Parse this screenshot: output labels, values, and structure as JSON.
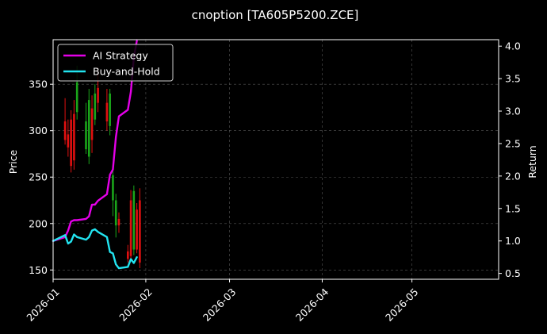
{
  "chart_data": {
    "type": "line",
    "title": "cnoption [TA605P5200.ZCE]",
    "ylabel_left": "Price",
    "ylabel_right": "Return",
    "xlim": [
      "2026-01-01",
      "2026-05-30"
    ],
    "ylim_left": [
      140,
      398
    ],
    "ylim_right": [
      0.41,
      4.1
    ],
    "x_ticks": [
      "2026-01",
      "2026-02",
      "2026-03",
      "2026-04",
      "2026-05"
    ],
    "y_ticks_left": [
      150,
      200,
      250,
      300,
      350
    ],
    "y_ticks_right": [
      "0.5",
      "1.0",
      "1.5",
      "2.0",
      "2.5",
      "3.0",
      "3.5",
      "4.0"
    ],
    "grid": true,
    "legend_position": "top-left",
    "colors": {
      "background": "#000000",
      "ai_strategy": "#e400e8",
      "buy_and_hold": "#22e4f0",
      "candle_up": "#1aa51a",
      "candle_down": "#e01010",
      "grid": "#555555"
    },
    "series": [
      {
        "name": "AI Strategy",
        "axis": "right",
        "color": "#e400e8",
        "x": [
          "2026-01-01",
          "2026-01-05",
          "2026-01-06",
          "2026-01-07",
          "2026-01-08",
          "2026-01-09",
          "2026-01-12",
          "2026-01-13",
          "2026-01-14",
          "2026-01-15",
          "2026-01-16",
          "2026-01-19",
          "2026-01-20",
          "2026-01-21",
          "2026-01-22",
          "2026-01-23",
          "2026-01-26",
          "2026-01-27",
          "2026-01-28",
          "2026-01-29"
        ],
        "values": [
          1.0,
          1.06,
          1.16,
          1.3,
          1.32,
          1.32,
          1.34,
          1.38,
          1.56,
          1.56,
          1.62,
          1.72,
          2.02,
          2.1,
          2.6,
          2.92,
          3.02,
          3.3,
          3.82,
          4.08
        ]
      },
      {
        "name": "Buy-and-Hold",
        "axis": "right",
        "color": "#22e4f0",
        "x": [
          "2026-01-01",
          "2026-01-05",
          "2026-01-06",
          "2026-01-07",
          "2026-01-08",
          "2026-01-09",
          "2026-01-12",
          "2026-01-13",
          "2026-01-14",
          "2026-01-15",
          "2026-01-16",
          "2026-01-19",
          "2026-01-20",
          "2026-01-21",
          "2026-01-22",
          "2026-01-23",
          "2026-01-26",
          "2026-01-27",
          "2026-01-28",
          "2026-01-29"
        ],
        "values": [
          1.0,
          1.09,
          0.96,
          0.99,
          1.1,
          1.06,
          1.02,
          1.06,
          1.16,
          1.18,
          1.14,
          1.06,
          0.83,
          0.81,
          0.64,
          0.58,
          0.6,
          0.72,
          0.66,
          0.75
        ]
      }
    ],
    "candles": [
      {
        "date": "2026-01-05",
        "open": 310,
        "high": 335,
        "low": 285,
        "close": 290
      },
      {
        "date": "2026-01-06",
        "open": 296,
        "high": 312,
        "low": 272,
        "close": 282
      },
      {
        "date": "2026-01-07",
        "open": 312,
        "high": 322,
        "low": 255,
        "close": 262
      },
      {
        "date": "2026-01-08",
        "open": 318,
        "high": 333,
        "low": 258,
        "close": 268
      },
      {
        "date": "2026-01-09",
        "open": 320,
        "high": 370,
        "low": 312,
        "close": 352
      },
      {
        "date": "2026-01-12",
        "open": 280,
        "high": 330,
        "low": 275,
        "close": 310
      },
      {
        "date": "2026-01-13",
        "open": 272,
        "high": 345,
        "low": 264,
        "close": 333
      },
      {
        "date": "2026-01-14",
        "open": 324,
        "high": 338,
        "low": 276,
        "close": 290
      },
      {
        "date": "2026-01-15",
        "open": 312,
        "high": 350,
        "low": 306,
        "close": 340
      },
      {
        "date": "2026-01-16",
        "open": 346,
        "high": 368,
        "low": 320,
        "close": 330
      },
      {
        "date": "2026-01-19",
        "open": 330,
        "high": 345,
        "low": 300,
        "close": 310
      },
      {
        "date": "2026-01-20",
        "open": 305,
        "high": 345,
        "low": 295,
        "close": 340
      },
      {
        "date": "2026-01-21",
        "open": 225,
        "high": 262,
        "low": 208,
        "close": 252
      },
      {
        "date": "2026-01-22",
        "open": 198,
        "high": 232,
        "low": 185,
        "close": 225
      },
      {
        "date": "2026-01-23",
        "open": 205,
        "high": 212,
        "low": 190,
        "close": 198
      },
      {
        "date": "2026-01-26",
        "open": 170,
        "high": 177,
        "low": 158,
        "close": 162
      },
      {
        "date": "2026-01-27",
        "open": 225,
        "high": 236,
        "low": 160,
        "close": 165
      },
      {
        "date": "2026-01-28",
        "open": 172,
        "high": 241,
        "low": 166,
        "close": 235
      },
      {
        "date": "2026-01-29",
        "open": 215,
        "high": 222,
        "low": 168,
        "close": 172
      },
      {
        "date": "2026-01-30",
        "open": 225,
        "high": 238,
        "low": 152,
        "close": 158
      }
    ]
  }
}
